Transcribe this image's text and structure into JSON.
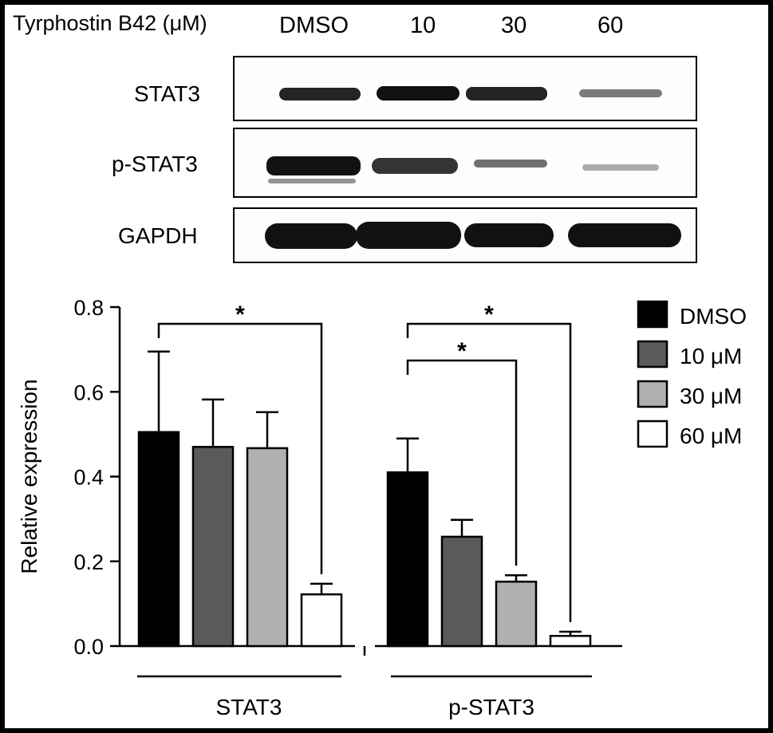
{
  "blot": {
    "treatment_label": "Tyrphostin B42 (μM)",
    "lanes": [
      "DMSO",
      "10",
      "30",
      "60"
    ],
    "rows": [
      {
        "label": "STAT3",
        "band_intensity": [
          0.95,
          1.0,
          0.95,
          0.45
        ]
      },
      {
        "label": "p-STAT3",
        "band_intensity": [
          1.0,
          0.85,
          0.55,
          0.3
        ]
      },
      {
        "label": "GAPDH",
        "band_intensity": [
          1.0,
          1.0,
          1.0,
          1.0
        ]
      }
    ]
  },
  "chart_data": {
    "type": "bar",
    "categories": [
      "STAT3",
      "p-STAT3"
    ],
    "series": [
      {
        "name": "DMSO",
        "color": "#000000",
        "values": [
          0.505,
          0.41
        ],
        "errors": [
          0.19,
          0.08
        ]
      },
      {
        "name": "10 μM",
        "color": "#5a5a5a",
        "values": [
          0.47,
          0.258
        ],
        "errors": [
          0.112,
          0.04
        ]
      },
      {
        "name": "30 μM",
        "color": "#b0b0b0",
        "values": [
          0.467,
          0.152
        ],
        "errors": [
          0.085,
          0.015
        ]
      },
      {
        "name": "60 μM",
        "color": "#ffffff",
        "values": [
          0.122,
          0.024
        ],
        "errors": [
          0.025,
          0.01
        ]
      }
    ],
    "ylabel": "Relative expression",
    "xlabel": "",
    "ylim": [
      0,
      0.8
    ],
    "yticks": [
      "0.0",
      "0.2",
      "0.4",
      "0.6",
      "0.8"
    ],
    "significance": [
      {
        "group": 0,
        "from": 0,
        "to": 3,
        "label": "*"
      },
      {
        "group": 1,
        "from": 0,
        "to": 2,
        "label": "*"
      },
      {
        "group": 1,
        "from": 0,
        "to": 3,
        "label": "*"
      }
    ],
    "legend_position": "top-right",
    "grid": false
  }
}
